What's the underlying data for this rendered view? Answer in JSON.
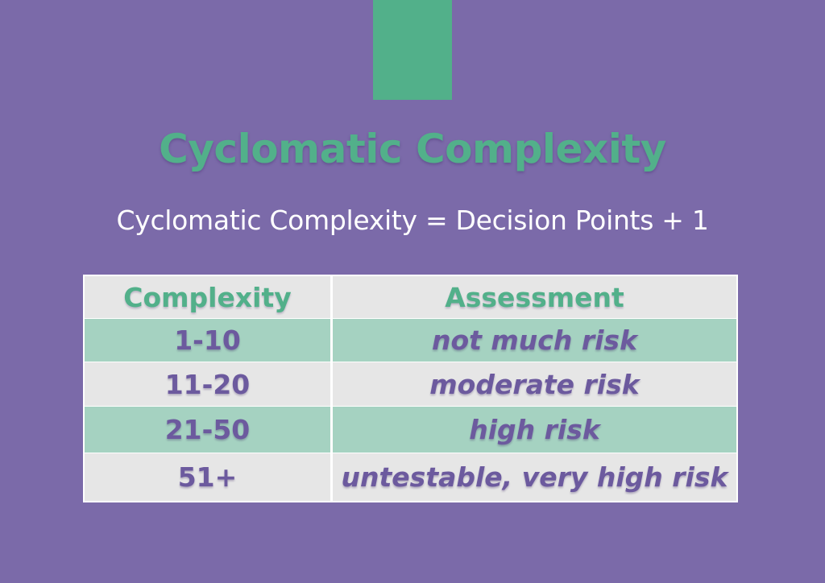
{
  "title": "Cyclomatic Complexity",
  "formula": "Cyclomatic Complexity = Decision Points + 1",
  "colors": {
    "background": "#7b6aa9",
    "accent_green": "#52b08a",
    "row_green": "#a5d2c1",
    "row_grey": "#e6e6e6",
    "body_text_purple": "#6c5a9e"
  },
  "table": {
    "headers": [
      "Complexity",
      "Assessment"
    ],
    "rows": [
      {
        "complexity": "1-10",
        "assessment": "not much risk"
      },
      {
        "complexity": "11-20",
        "assessment": "moderate risk"
      },
      {
        "complexity": "21-50",
        "assessment": "high risk"
      },
      {
        "complexity": "51+",
        "assessment": "untestable, very high risk"
      }
    ]
  }
}
